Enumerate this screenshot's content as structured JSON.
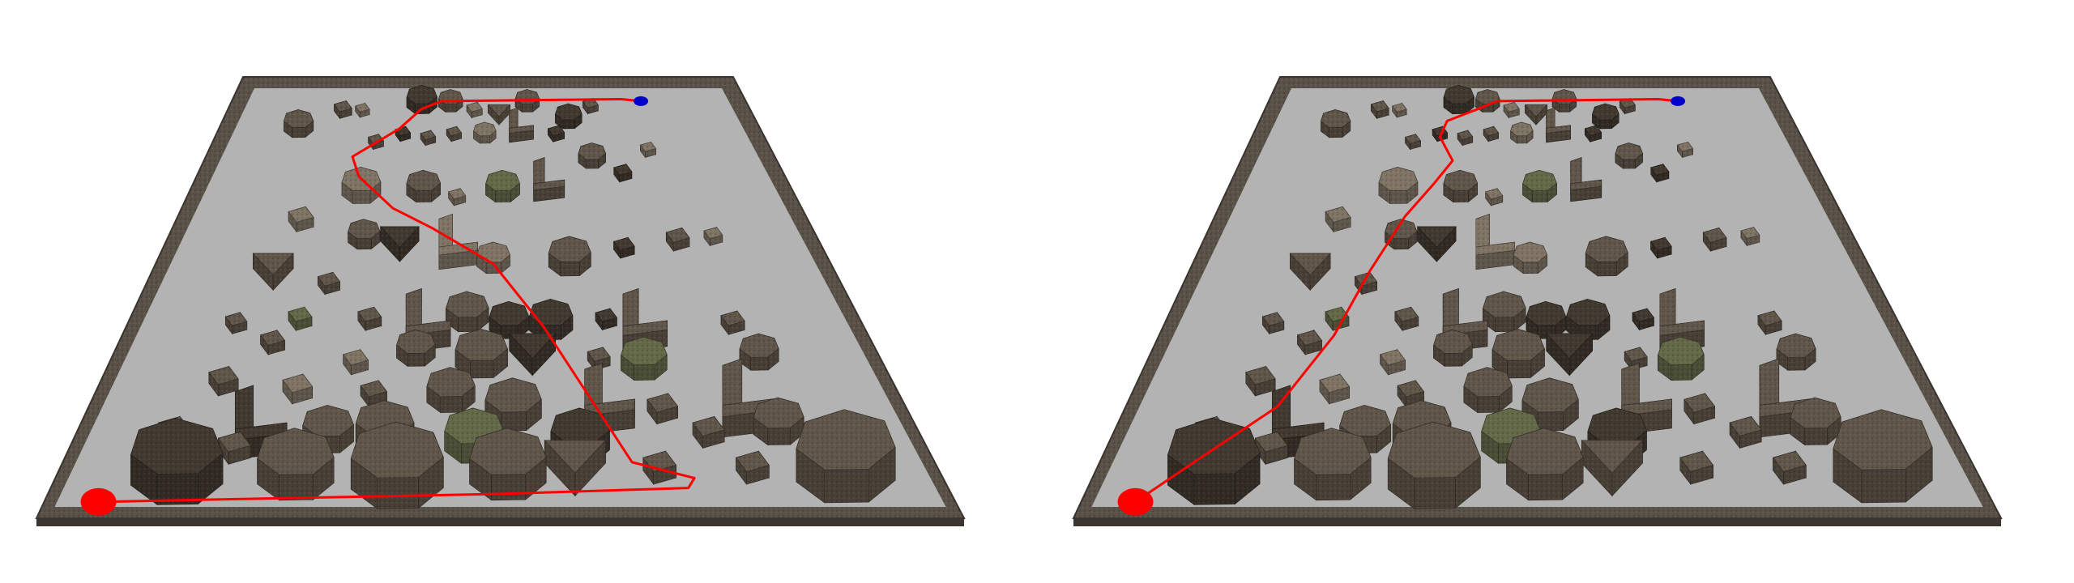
{
  "colors": {
    "background": "#ffffff",
    "floor": "#b3b3b3",
    "wall": "#5a5248",
    "wall_edge": "#3a342d",
    "obstacle_dark": "#3f372e",
    "obstacle_mid": "#5c5246",
    "obstacle_light": "#7a6e60",
    "obstacle_green": "#5f6445",
    "path": "#ff0000",
    "start_marker": "#ff0000",
    "goal_marker": "#0000cc"
  },
  "scenes": [
    {
      "id": "left",
      "label": "",
      "path_style": "detour"
    },
    {
      "id": "right",
      "label": "",
      "path_style": "direct"
    }
  ]
}
